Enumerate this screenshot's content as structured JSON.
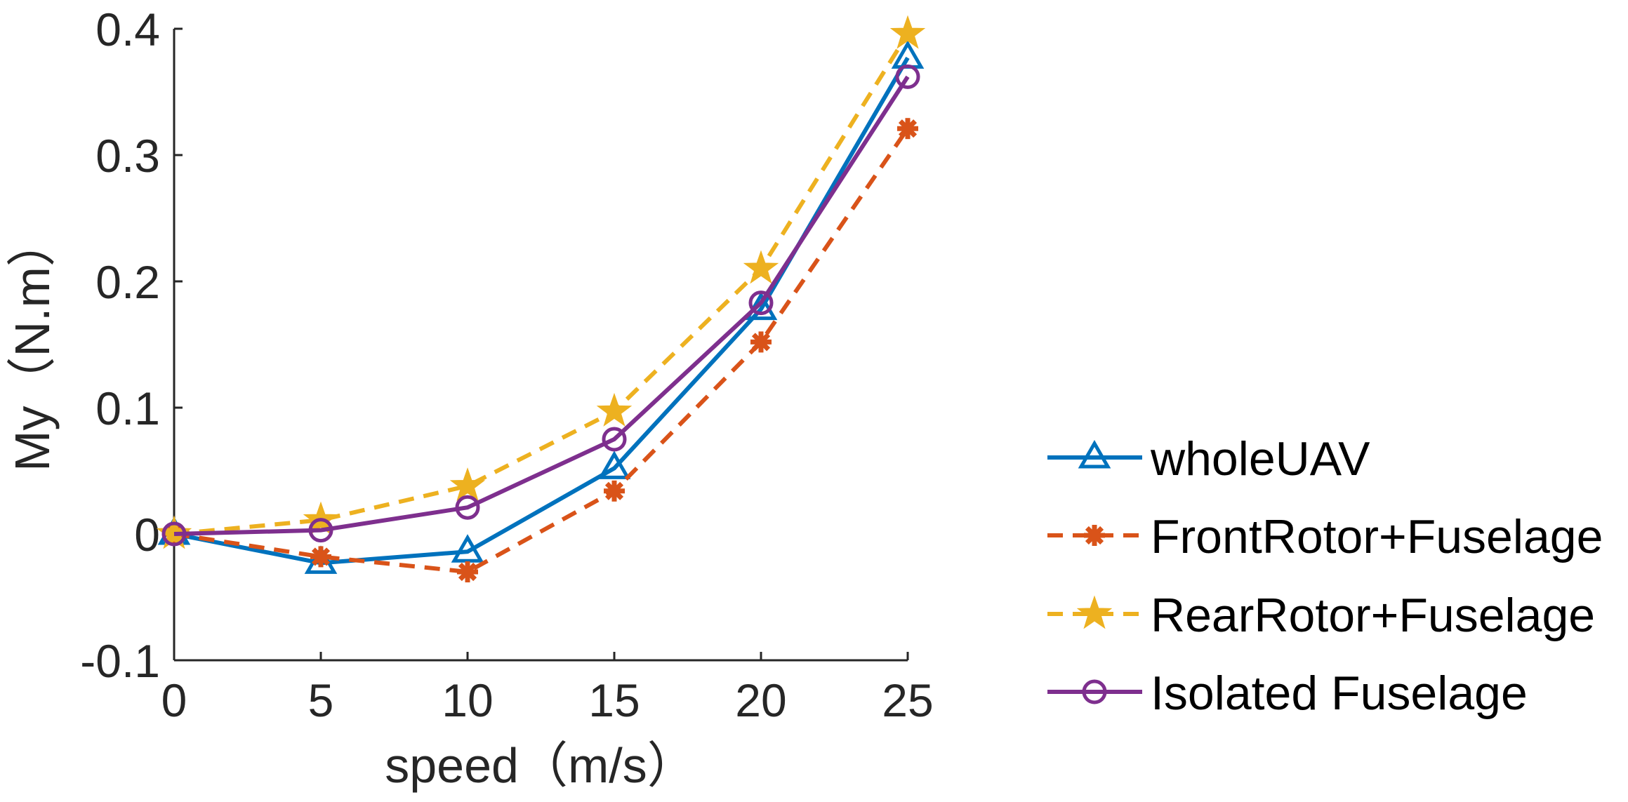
{
  "chart_data": {
    "type": "line",
    "title": "",
    "xlabel": "speed（m/s）",
    "ylabel": "My（N.m）",
    "x": [
      0,
      5,
      10,
      15,
      20,
      25
    ],
    "xlim": [
      0,
      25
    ],
    "ylim": [
      -0.1,
      0.4
    ],
    "xticks": [
      "0",
      "5",
      "10",
      "15",
      "20",
      "25"
    ],
    "yticks": [
      "-0.1",
      "0",
      "0.1",
      "0.2",
      "0.3",
      "0.4"
    ],
    "ytick_values": [
      -0.1,
      0,
      0.1,
      0.2,
      0.3,
      0.4
    ],
    "grid": false,
    "legend_position": "right",
    "series": [
      {
        "name": "wholeUAV",
        "color": "#0072BD",
        "dash": false,
        "marker": "triangle",
        "values": [
          0,
          -0.023,
          -0.014,
          0.052,
          0.178,
          0.377
        ]
      },
      {
        "name": "FrontRotor+Fuselage",
        "color": "#D95319",
        "dash": true,
        "marker": "asterisk",
        "values": [
          0,
          -0.018,
          -0.03,
          0.034,
          0.152,
          0.321
        ]
      },
      {
        "name": "RearRotor+Fuselage",
        "color": "#EDB120",
        "dash": true,
        "marker": "star",
        "values": [
          0,
          0.011,
          0.038,
          0.097,
          0.21,
          0.396
        ]
      },
      {
        "name": "Isolated Fuselage",
        "color": "#7E2F8E",
        "dash": false,
        "marker": "circle",
        "values": [
          0,
          0.003,
          0.021,
          0.075,
          0.183,
          0.362
        ]
      }
    ]
  }
}
